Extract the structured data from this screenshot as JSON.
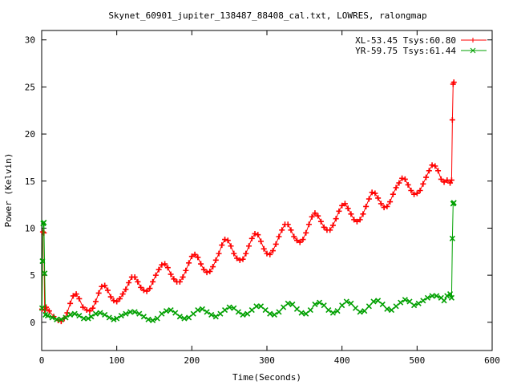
{
  "chart_data": {
    "type": "line",
    "title": "Skynet_60901_jupiter_138487_88408_cal.txt, LOWRES, ralongmap",
    "xlabel": "Time(Seconds)",
    "ylabel": "Power (Kelvin)",
    "xlim": [
      0,
      600
    ],
    "ylim": [
      -3,
      31
    ],
    "xticks": [
      0,
      100,
      200,
      300,
      400,
      500,
      600
    ],
    "yticks": [
      0,
      5,
      10,
      15,
      20,
      25,
      30
    ],
    "grid": false,
    "legend_position": "top-right",
    "series": [
      {
        "name": "XL-53.45 Tsys:60.80",
        "color": "#ff0000",
        "marker": "plus",
        "points": [
          [
            0.5,
            1.4
          ],
          [
            1.5,
            9.6
          ],
          [
            3,
            9.5
          ],
          [
            4,
            1.3
          ],
          [
            6,
            1.6
          ],
          [
            10,
            1.2
          ],
          [
            16,
            0.6
          ],
          [
            22,
            0.2
          ],
          [
            26,
            0.1
          ],
          [
            30,
            0.4
          ],
          [
            34,
            1.0
          ],
          [
            38,
            2.0
          ],
          [
            42,
            2.8
          ],
          [
            46,
            3.0
          ],
          [
            50,
            2.5
          ],
          [
            55,
            1.6
          ],
          [
            60,
            1.3
          ],
          [
            64,
            1.2
          ],
          [
            68,
            1.5
          ],
          [
            72,
            2.2
          ],
          [
            76,
            3.1
          ],
          [
            80,
            3.8
          ],
          [
            84,
            3.9
          ],
          [
            88,
            3.4
          ],
          [
            92,
            2.7
          ],
          [
            96,
            2.3
          ],
          [
            100,
            2.2
          ],
          [
            104,
            2.5
          ],
          [
            108,
            3.0
          ],
          [
            112,
            3.5
          ],
          [
            116,
            4.2
          ],
          [
            120,
            4.8
          ],
          [
            124,
            4.8
          ],
          [
            128,
            4.3
          ],
          [
            132,
            3.7
          ],
          [
            136,
            3.4
          ],
          [
            140,
            3.3
          ],
          [
            144,
            3.6
          ],
          [
            148,
            4.3
          ],
          [
            152,
            5.0
          ],
          [
            156,
            5.6
          ],
          [
            160,
            6.1
          ],
          [
            164,
            6.2
          ],
          [
            168,
            5.8
          ],
          [
            172,
            5.1
          ],
          [
            176,
            4.6
          ],
          [
            180,
            4.3
          ],
          [
            184,
            4.3
          ],
          [
            188,
            4.8
          ],
          [
            192,
            5.5
          ],
          [
            196,
            6.3
          ],
          [
            200,
            7.0
          ],
          [
            204,
            7.2
          ],
          [
            208,
            6.9
          ],
          [
            212,
            6.2
          ],
          [
            216,
            5.6
          ],
          [
            220,
            5.3
          ],
          [
            224,
            5.4
          ],
          [
            228,
            5.9
          ],
          [
            232,
            6.6
          ],
          [
            236,
            7.3
          ],
          [
            240,
            8.2
          ],
          [
            244,
            8.8
          ],
          [
            248,
            8.7
          ],
          [
            252,
            8.1
          ],
          [
            256,
            7.3
          ],
          [
            260,
            6.8
          ],
          [
            264,
            6.6
          ],
          [
            268,
            6.7
          ],
          [
            272,
            7.3
          ],
          [
            276,
            8.1
          ],
          [
            280,
            8.9
          ],
          [
            284,
            9.4
          ],
          [
            288,
            9.3
          ],
          [
            292,
            8.6
          ],
          [
            296,
            7.8
          ],
          [
            300,
            7.3
          ],
          [
            304,
            7.2
          ],
          [
            308,
            7.6
          ],
          [
            312,
            8.3
          ],
          [
            316,
            9.1
          ],
          [
            320,
            9.8
          ],
          [
            324,
            10.4
          ],
          [
            328,
            10.4
          ],
          [
            332,
            9.8
          ],
          [
            336,
            9.1
          ],
          [
            340,
            8.7
          ],
          [
            344,
            8.5
          ],
          [
            348,
            8.8
          ],
          [
            352,
            9.5
          ],
          [
            356,
            10.4
          ],
          [
            360,
            11.2
          ],
          [
            364,
            11.6
          ],
          [
            368,
            11.3
          ],
          [
            372,
            10.7
          ],
          [
            376,
            10.1
          ],
          [
            380,
            9.8
          ],
          [
            384,
            9.8
          ],
          [
            388,
            10.3
          ],
          [
            392,
            11.0
          ],
          [
            396,
            11.8
          ],
          [
            400,
            12.4
          ],
          [
            404,
            12.6
          ],
          [
            408,
            12.1
          ],
          [
            412,
            11.5
          ],
          [
            416,
            10.9
          ],
          [
            420,
            10.7
          ],
          [
            424,
            10.9
          ],
          [
            428,
            11.5
          ],
          [
            432,
            12.3
          ],
          [
            436,
            13.1
          ],
          [
            440,
            13.8
          ],
          [
            444,
            13.7
          ],
          [
            448,
            13.2
          ],
          [
            452,
            12.6
          ],
          [
            456,
            12.2
          ],
          [
            460,
            12.3
          ],
          [
            464,
            12.8
          ],
          [
            468,
            13.6
          ],
          [
            472,
            14.3
          ],
          [
            476,
            14.8
          ],
          [
            480,
            15.3
          ],
          [
            484,
            15.2
          ],
          [
            488,
            14.6
          ],
          [
            492,
            14.0
          ],
          [
            496,
            13.6
          ],
          [
            500,
            13.7
          ],
          [
            504,
            14.0
          ],
          [
            508,
            14.7
          ],
          [
            512,
            15.4
          ],
          [
            516,
            16.1
          ],
          [
            520,
            16.7
          ],
          [
            524,
            16.6
          ],
          [
            528,
            16.1
          ],
          [
            532,
            15.2
          ],
          [
            536,
            14.9
          ],
          [
            540,
            15.1
          ],
          [
            544,
            14.8
          ],
          [
            546,
            15.1
          ],
          [
            547,
            21.5
          ],
          [
            548,
            25.3
          ],
          [
            549,
            25.5
          ]
        ]
      },
      {
        "name": "YR-59.75 Tsys:61.44",
        "color": "#00a000",
        "marker": "cross",
        "points": [
          [
            0.5,
            1.5
          ],
          [
            1,
            6.5
          ],
          [
            2,
            10.5
          ],
          [
            3,
            10.6
          ],
          [
            4,
            5.2
          ],
          [
            5,
            0.8
          ],
          [
            8,
            0.7
          ],
          [
            14,
            0.5
          ],
          [
            20,
            0.3
          ],
          [
            26,
            0.3
          ],
          [
            32,
            0.5
          ],
          [
            38,
            0.8
          ],
          [
            44,
            0.9
          ],
          [
            50,
            0.7
          ],
          [
            56,
            0.4
          ],
          [
            62,
            0.4
          ],
          [
            66,
            0.6
          ],
          [
            72,
            0.9
          ],
          [
            78,
            1.0
          ],
          [
            84,
            0.8
          ],
          [
            90,
            0.5
          ],
          [
            96,
            0.3
          ],
          [
            100,
            0.4
          ],
          [
            106,
            0.7
          ],
          [
            112,
            0.9
          ],
          [
            118,
            1.1
          ],
          [
            124,
            1.1
          ],
          [
            130,
            0.9
          ],
          [
            136,
            0.6
          ],
          [
            142,
            0.3
          ],
          [
            148,
            0.2
          ],
          [
            154,
            0.4
          ],
          [
            160,
            0.9
          ],
          [
            166,
            1.2
          ],
          [
            172,
            1.3
          ],
          [
            178,
            1.0
          ],
          [
            184,
            0.6
          ],
          [
            190,
            0.4
          ],
          [
            196,
            0.5
          ],
          [
            202,
            0.9
          ],
          [
            208,
            1.3
          ],
          [
            214,
            1.4
          ],
          [
            220,
            1.1
          ],
          [
            226,
            0.8
          ],
          [
            232,
            0.6
          ],
          [
            238,
            0.9
          ],
          [
            244,
            1.3
          ],
          [
            250,
            1.6
          ],
          [
            256,
            1.5
          ],
          [
            262,
            1.1
          ],
          [
            268,
            0.8
          ],
          [
            274,
            0.9
          ],
          [
            280,
            1.3
          ],
          [
            286,
            1.7
          ],
          [
            292,
            1.7
          ],
          [
            298,
            1.3
          ],
          [
            304,
            0.9
          ],
          [
            310,
            0.8
          ],
          [
            316,
            1.1
          ],
          [
            322,
            1.6
          ],
          [
            328,
            2.0
          ],
          [
            334,
            1.9
          ],
          [
            340,
            1.4
          ],
          [
            346,
            1.0
          ],
          [
            352,
            0.9
          ],
          [
            358,
            1.3
          ],
          [
            364,
            1.9
          ],
          [
            370,
            2.1
          ],
          [
            376,
            1.8
          ],
          [
            382,
            1.3
          ],
          [
            388,
            1.0
          ],
          [
            394,
            1.2
          ],
          [
            400,
            1.8
          ],
          [
            406,
            2.2
          ],
          [
            412,
            2.0
          ],
          [
            418,
            1.5
          ],
          [
            424,
            1.1
          ],
          [
            430,
            1.2
          ],
          [
            436,
            1.7
          ],
          [
            442,
            2.2
          ],
          [
            448,
            2.3
          ],
          [
            454,
            1.9
          ],
          [
            460,
            1.4
          ],
          [
            466,
            1.3
          ],
          [
            472,
            1.7
          ],
          [
            478,
            2.1
          ],
          [
            484,
            2.4
          ],
          [
            490,
            2.2
          ],
          [
            496,
            1.8
          ],
          [
            502,
            2.0
          ],
          [
            508,
            2.3
          ],
          [
            514,
            2.6
          ],
          [
            520,
            2.8
          ],
          [
            526,
            2.8
          ],
          [
            532,
            2.6
          ],
          [
            536,
            2.3
          ],
          [
            540,
            2.8
          ],
          [
            544,
            3.0
          ],
          [
            546,
            2.6
          ],
          [
            547,
            8.9
          ],
          [
            548,
            12.6
          ],
          [
            549,
            12.7
          ]
        ]
      }
    ]
  }
}
